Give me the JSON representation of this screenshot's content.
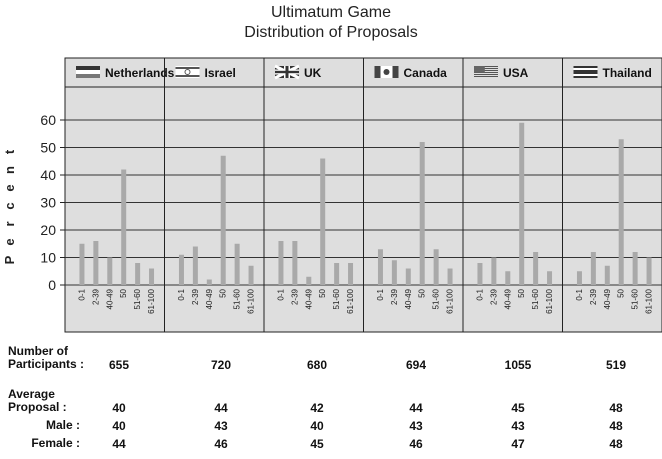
{
  "title_line1": "Ultimatum Game",
  "title_line2": "Distribution of Proposals",
  "ylabel_letters": [
    "P",
    "e",
    "r",
    "c",
    "e",
    "n",
    "t"
  ],
  "colors": {
    "panel_bg": "#dedede",
    "bar": "#a9a9a9",
    "grid": "#333333"
  },
  "chart_data": {
    "type": "bar",
    "title": "Ultimatum Game Distribution of Proposals",
    "ylabel": "Percent",
    "ylim": [
      0,
      60
    ],
    "yticks": [
      0,
      10,
      20,
      30,
      40,
      50,
      60
    ],
    "categories": [
      "0-1",
      "2-39",
      "40-49",
      "50",
      "51-60",
      "61-100"
    ],
    "panels": [
      {
        "country": "Netherlands",
        "flag": "netherlands",
        "values": [
          15,
          16,
          10,
          42,
          8,
          6
        ]
      },
      {
        "country": "Israel",
        "flag": "israel",
        "values": [
          11,
          14,
          2,
          47,
          15,
          7
        ]
      },
      {
        "country": "UK",
        "flag": "uk",
        "values": [
          16,
          16,
          3,
          46,
          8,
          8
        ]
      },
      {
        "country": "Canada",
        "flag": "canada",
        "values": [
          13,
          9,
          6,
          52,
          13,
          6
        ]
      },
      {
        "country": "USA",
        "flag": "usa",
        "values": [
          8,
          10,
          5,
          59,
          12,
          5
        ]
      },
      {
        "country": "Thailand",
        "flag": "thailand",
        "values": [
          5,
          12,
          7,
          53,
          12,
          10
        ]
      }
    ]
  },
  "stats": {
    "participants_label_1": "Number of",
    "participants_label_2": "Participants :",
    "participants": [
      "655",
      "720",
      "680",
      "694",
      "1055",
      "519"
    ],
    "average_label_1": "Average",
    "average_label_2": "Proposal :",
    "average": [
      "40",
      "44",
      "42",
      "44",
      "45",
      "48"
    ],
    "male_label": "Male :",
    "male": [
      "40",
      "43",
      "40",
      "43",
      "43",
      "48"
    ],
    "female_label": "Female :",
    "female": [
      "44",
      "46",
      "45",
      "46",
      "47",
      "48"
    ]
  }
}
